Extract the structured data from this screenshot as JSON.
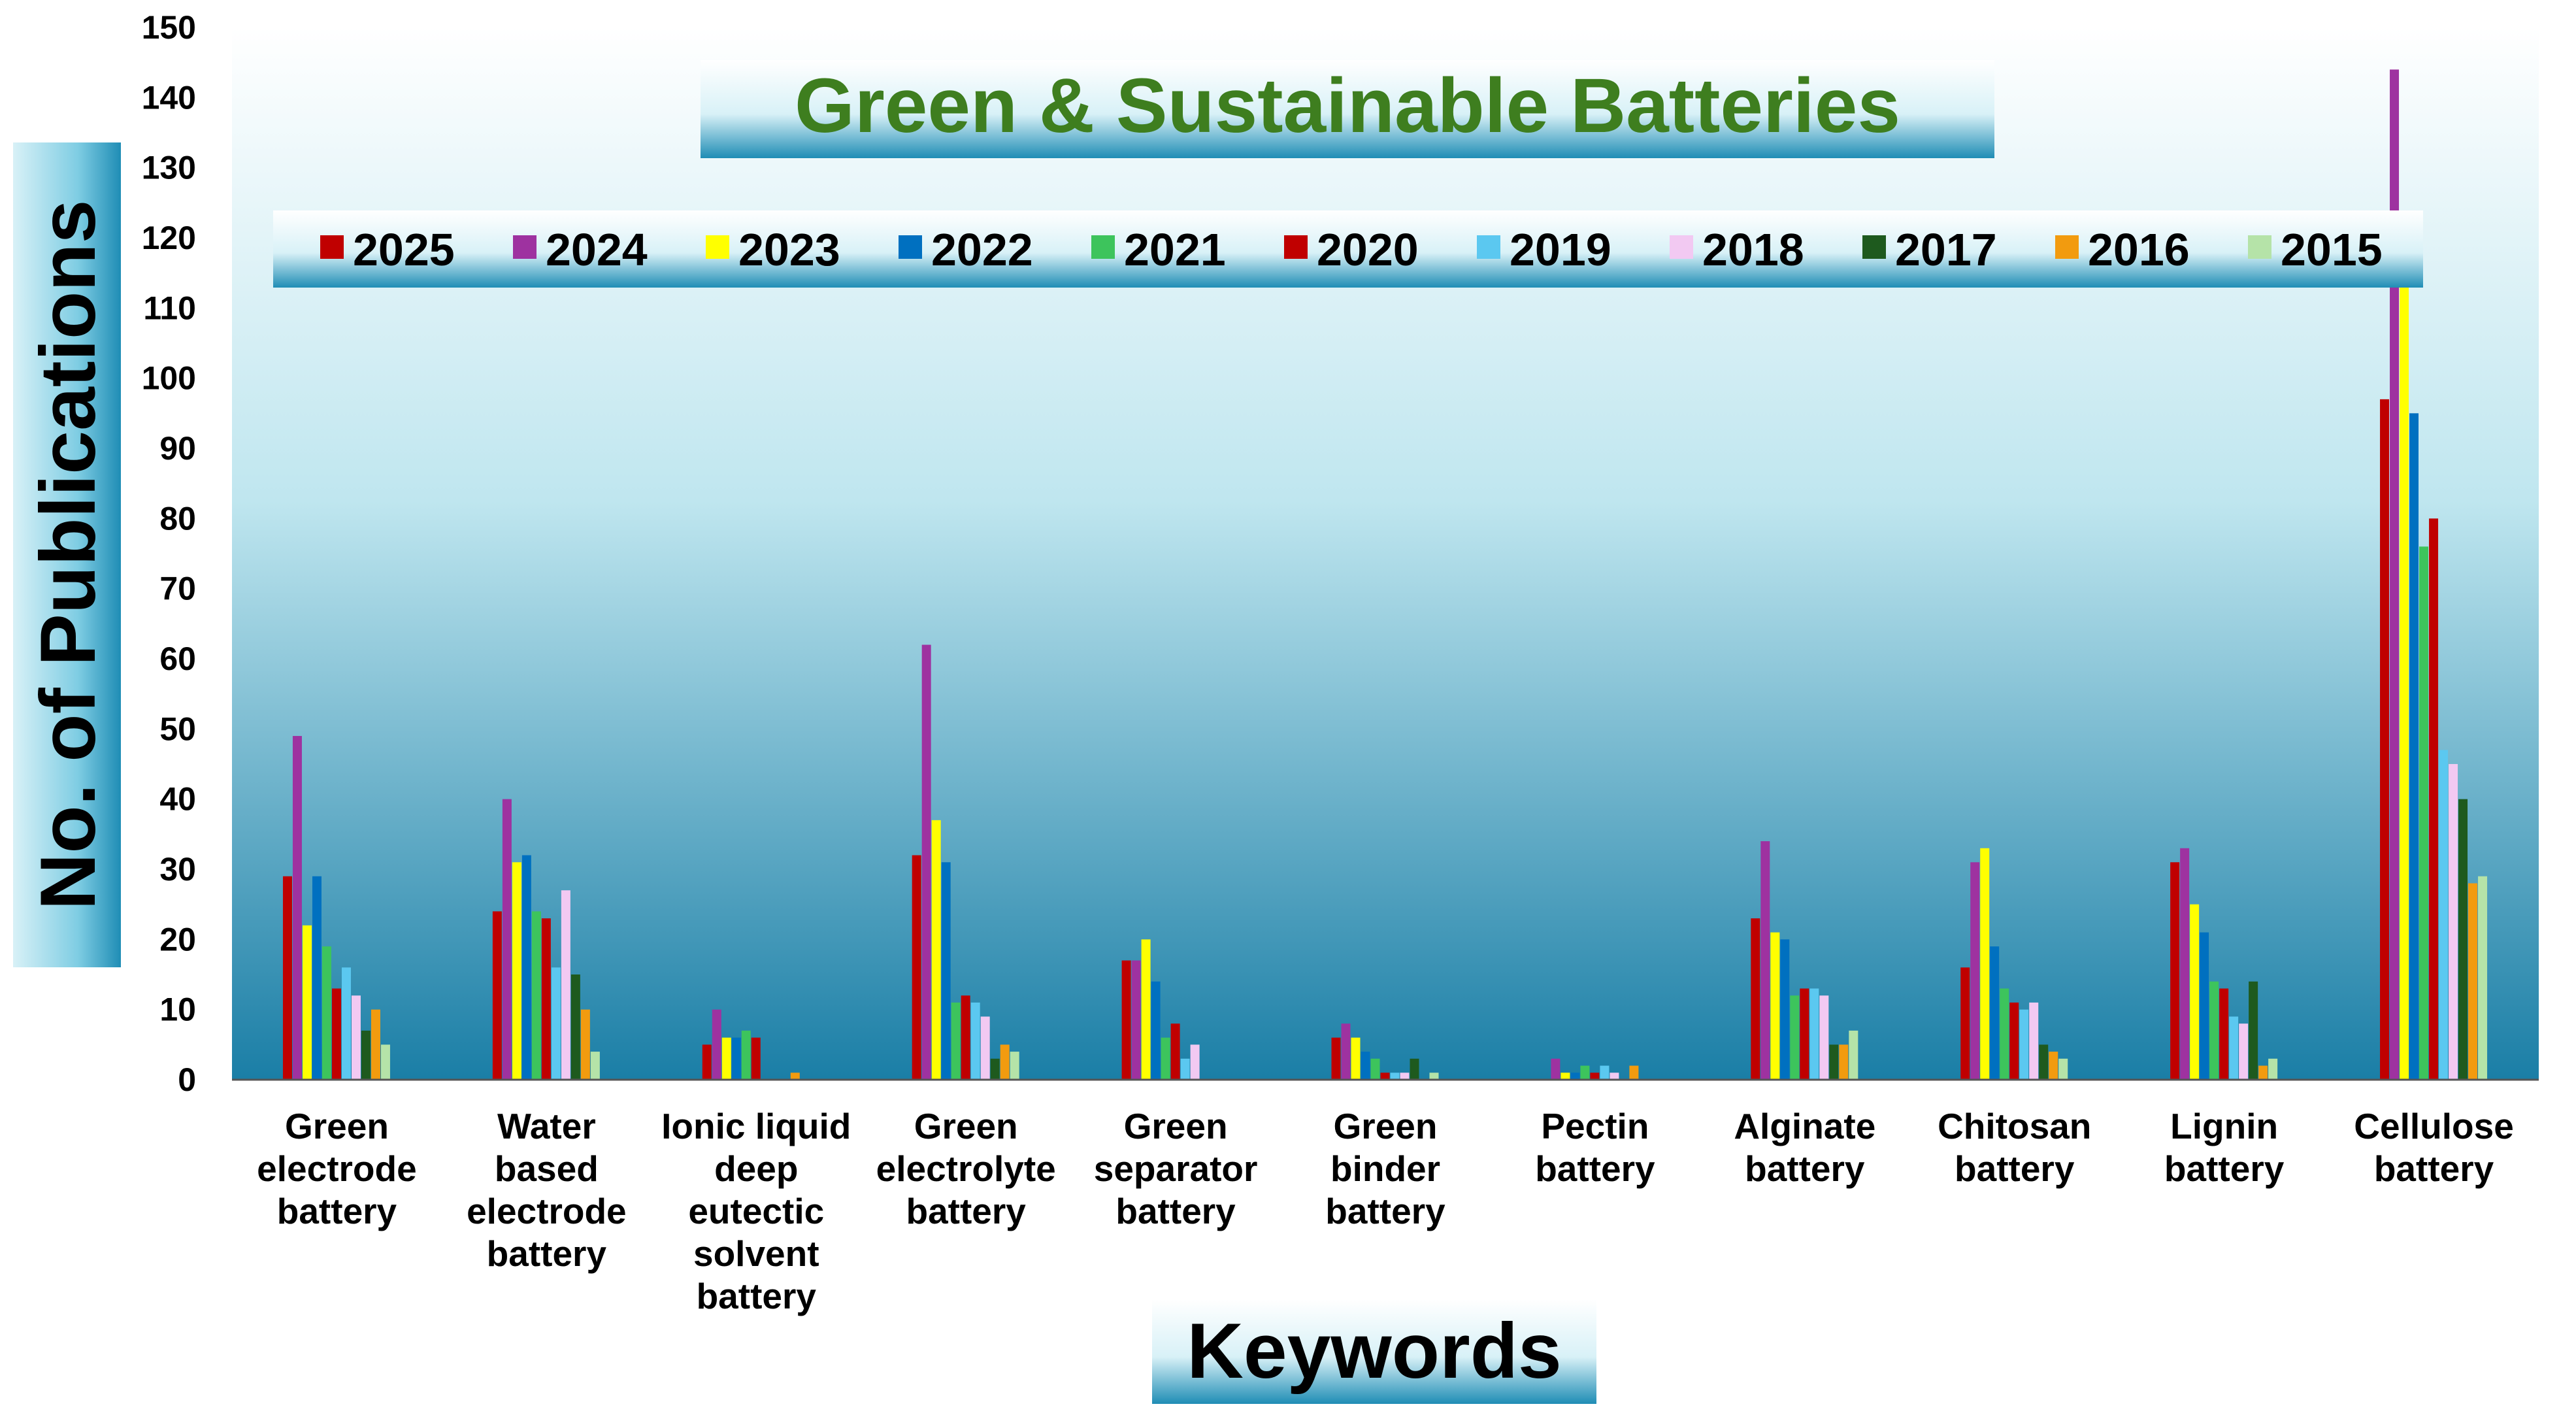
{
  "chart_data": {
    "type": "bar",
    "title": "Green & Sustainable Batteries",
    "xlabel": "Keywords",
    "ylabel": "No. of Publications",
    "ylim": [
      0,
      150
    ],
    "ytick_step": 10,
    "grid": false,
    "legend_position": "top",
    "categories": [
      [
        "Green",
        "electrode",
        "battery"
      ],
      [
        "Water",
        "based",
        "electrode",
        "battery"
      ],
      [
        "Ionic liquid",
        "deep",
        "eutectic",
        "solvent",
        "battery"
      ],
      [
        "Green",
        "electrolyte",
        "battery"
      ],
      [
        "Green",
        "separator",
        "battery"
      ],
      [
        "Green",
        "binder",
        "battery"
      ],
      [
        "Pectin",
        "battery"
      ],
      [
        "Alginate",
        "battery"
      ],
      [
        "Chitosan",
        "battery"
      ],
      [
        "Lignin",
        "battery"
      ],
      [
        "Cellulose",
        "battery"
      ]
    ],
    "series": [
      {
        "name": "2025",
        "color": "#c00000",
        "values": [
          29,
          24,
          5,
          32,
          17,
          6,
          0,
          23,
          16,
          31,
          97
        ]
      },
      {
        "name": "2024",
        "color": "#9e32a0",
        "values": [
          49,
          40,
          10,
          62,
          17,
          8,
          3,
          34,
          31,
          33,
          144
        ]
      },
      {
        "name": "2023",
        "color": "#ffff00",
        "values": [
          22,
          31,
          6,
          37,
          20,
          6,
          1,
          21,
          33,
          25,
          121
        ]
      },
      {
        "name": "2022",
        "color": "#0070c0",
        "values": [
          29,
          32,
          6,
          31,
          14,
          4,
          1,
          20,
          19,
          21,
          95
        ]
      },
      {
        "name": "2021",
        "color": "#3dc45c",
        "values": [
          19,
          24,
          7,
          11,
          6,
          3,
          2,
          12,
          13,
          14,
          76
        ]
      },
      {
        "name": "2020",
        "color": "#c00000",
        "values": [
          13,
          23,
          6,
          12,
          8,
          1,
          1,
          13,
          11,
          13,
          80
        ]
      },
      {
        "name": "2019",
        "color": "#5bc8f0",
        "values": [
          16,
          16,
          0,
          11,
          3,
          1,
          2,
          13,
          10,
          9,
          47
        ]
      },
      {
        "name": "2018",
        "color": "#f2c9f2",
        "values": [
          12,
          27,
          0,
          9,
          5,
          1,
          1,
          12,
          11,
          8,
          45
        ]
      },
      {
        "name": "2017",
        "color": "#1e5a1e",
        "values": [
          7,
          15,
          0,
          3,
          0,
          3,
          0,
          5,
          5,
          14,
          40
        ]
      },
      {
        "name": "2016",
        "color": "#f29b0f",
        "values": [
          10,
          10,
          1,
          5,
          0,
          0,
          2,
          5,
          4,
          2,
          28
        ]
      },
      {
        "name": "2015",
        "color": "#b5e3a8",
        "values": [
          5,
          4,
          0,
          4,
          0,
          1,
          0,
          7,
          3,
          3,
          29
        ]
      }
    ]
  }
}
